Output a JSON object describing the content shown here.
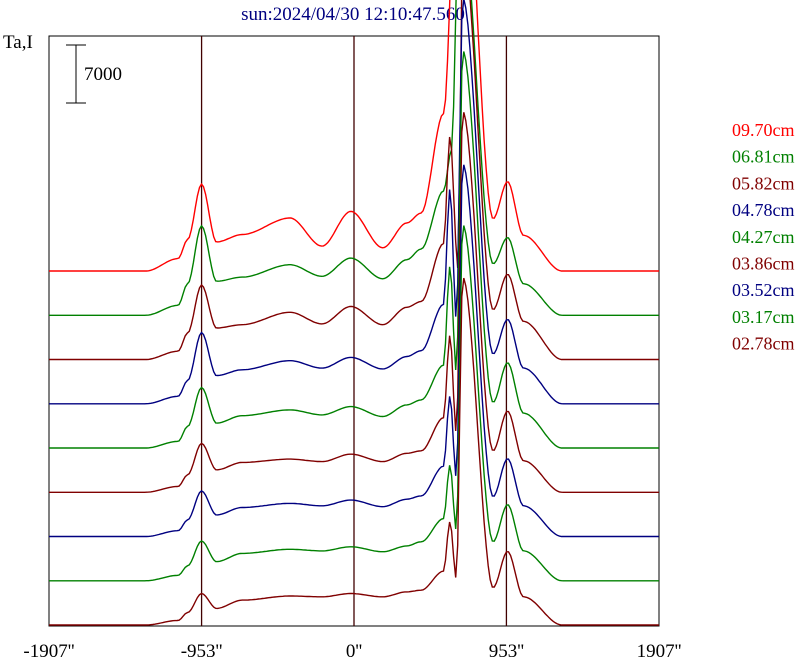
{
  "chart_data": {
    "type": "line",
    "title": "sun:2024/04/30 12:10:47.560",
    "ylabel": "Ta,I",
    "scale_bar_label": "7000",
    "xlim": [
      -1907,
      1907
    ],
    "x_ticks": [
      {
        "value": -1907,
        "label": "-1907''"
      },
      {
        "value": -953,
        "label": "-953''"
      },
      {
        "value": 0,
        "label": "0''"
      },
      {
        "value": 953,
        "label": "953''"
      },
      {
        "value": 1907,
        "label": "1907''"
      }
    ],
    "vertical_lines": [
      -953,
      0,
      953
    ],
    "grid": false,
    "legend_position": "right",
    "series": [
      {
        "name": "09.70cm",
        "color": "#ff0000",
        "peak": 29000,
        "features": [
          [
            -1300,
            60,
            -600
          ],
          [
            -1040,
            70,
            0
          ],
          [
            -953,
            40,
            4700
          ],
          [
            -860,
            40,
            -1200
          ],
          [
            -750,
            150,
            1600
          ],
          [
            -560,
            130,
            1300
          ],
          [
            -380,
            60,
            3000
          ],
          [
            -200,
            70,
            -1200
          ],
          [
            -20,
            60,
            4500
          ],
          [
            180,
            80,
            -1000
          ],
          [
            330,
            70,
            2500
          ],
          [
            420,
            60,
            1200
          ],
          [
            560,
            60,
            11500
          ],
          [
            660,
            110,
            30500
          ],
          [
            870,
            50,
            -2500
          ],
          [
            960,
            50,
            4900
          ],
          [
            1060,
            100,
            -1200
          ]
        ],
        "x": [
          -1907,
          -1300,
          -1100,
          -1040,
          -953,
          -860,
          -700,
          -400,
          -200,
          -20,
          180,
          330,
          420,
          560,
          660,
          870,
          960,
          1060,
          1300,
          1907
        ],
        "y": [
          0,
          0,
          1500,
          3800,
          10500,
          3500,
          4400,
          6400,
          3000,
          7200,
          2800,
          5800,
          7000,
          19000,
          60000,
          6300,
          10800,
          4300,
          0,
          0
        ]
      },
      {
        "name": "06.81cm",
        "color": "#008000",
        "x": [
          -1907,
          -1300,
          -1100,
          -1040,
          -953,
          -860,
          -700,
          -400,
          -200,
          -20,
          180,
          330,
          420,
          560,
          610,
          660,
          870,
          960,
          1060,
          1300,
          1907
        ],
        "y": [
          0,
          0,
          1200,
          3800,
          10800,
          4100,
          4600,
          6100,
          4700,
          6900,
          4400,
          6700,
          8000,
          15000,
          20000,
          51000,
          6200,
          9400,
          3800,
          0,
          0
        ]
      },
      {
        "name": "05.82cm",
        "color": "#800000",
        "x": [
          -1907,
          -1300,
          -1100,
          -1040,
          -953,
          -860,
          -700,
          -400,
          -200,
          -20,
          180,
          330,
          420,
          560,
          600,
          650,
          680,
          870,
          960,
          1060,
          1300,
          1907
        ],
        "y": [
          0,
          0,
          1000,
          3200,
          9000,
          3800,
          4200,
          5700,
          4300,
          6400,
          4200,
          6300,
          7000,
          14000,
          27000,
          11000,
          50000,
          6000,
          10300,
          4600,
          0,
          0
        ]
      },
      {
        "name": "04.78cm",
        "color": "#000080",
        "x": [
          -1907,
          -1300,
          -1100,
          -1040,
          -953,
          -860,
          -700,
          -400,
          -200,
          -20,
          180,
          330,
          420,
          560,
          600,
          640,
          680,
          870,
          960,
          1060,
          1300,
          1907
        ],
        "y": [
          0,
          0,
          900,
          2800,
          8600,
          3400,
          4100,
          5200,
          4300,
          5600,
          4200,
          5700,
          6400,
          12000,
          26000,
          10000,
          49000,
          6000,
          10200,
          4300,
          0,
          0
        ]
      },
      {
        "name": "04.27cm",
        "color": "#008000",
        "x": [
          -1907,
          -1300,
          -1100,
          -1040,
          -953,
          -860,
          -700,
          -400,
          -200,
          -20,
          180,
          330,
          420,
          560,
          600,
          640,
          680,
          870,
          960,
          1060,
          1300,
          1907
        ],
        "y": [
          0,
          0,
          800,
          2600,
          7300,
          3000,
          3900,
          4600,
          4000,
          5000,
          3800,
          5200,
          5800,
          10000,
          22000,
          9000,
          48000,
          5500,
          10300,
          4200,
          0,
          0
        ]
      },
      {
        "name": "03.86cm",
        "color": "#800000",
        "x": [
          -1907,
          -1300,
          -1100,
          -1040,
          -953,
          -860,
          -700,
          -400,
          -200,
          -20,
          180,
          330,
          420,
          560,
          600,
          640,
          680,
          870,
          960,
          1060,
          1300,
          1907
        ],
        "y": [
          0,
          0,
          700,
          2100,
          5900,
          2700,
          3600,
          4000,
          3700,
          4600,
          3700,
          4700,
          5000,
          9000,
          19000,
          7000,
          46000,
          5000,
          9800,
          3800,
          0,
          0
        ]
      },
      {
        "name": "03.52cm",
        "color": "#000080",
        "x": [
          -1907,
          -1300,
          -1100,
          -1040,
          -953,
          -860,
          -700,
          -400,
          -200,
          -20,
          180,
          330,
          420,
          560,
          600,
          640,
          680,
          870,
          960,
          1060,
          1300,
          1907
        ],
        "y": [
          0,
          0,
          700,
          2000,
          5500,
          2600,
          3500,
          4000,
          3700,
          4400,
          3600,
          4500,
          4900,
          8500,
          17000,
          7000,
          45000,
          4800,
          9400,
          3700,
          0,
          0
        ]
      },
      {
        "name": "03.17cm",
        "color": "#008000",
        "x": [
          -1907,
          -1300,
          -1100,
          -1040,
          -953,
          -860,
          -700,
          -400,
          -200,
          -20,
          180,
          330,
          420,
          560,
          600,
          640,
          680,
          870,
          960,
          1060,
          1300,
          1907
        ],
        "y": [
          0,
          0,
          650,
          1800,
          4800,
          2300,
          3300,
          3800,
          3600,
          4100,
          3500,
          4200,
          4700,
          7500,
          14000,
          6000,
          43000,
          4700,
          9200,
          3600,
          0,
          0
        ]
      },
      {
        "name": "02.78cm",
        "color": "#800000",
        "x": [
          -1907,
          -1300,
          -1100,
          -1040,
          -953,
          -860,
          -700,
          -400,
          -200,
          -20,
          180,
          330,
          420,
          560,
          600,
          640,
          680,
          870,
          960,
          1060,
          1300,
          1907
        ],
        "y": [
          0,
          0,
          550,
          1500,
          3800,
          2000,
          3000,
          3500,
          3400,
          3800,
          3400,
          4000,
          4200,
          6500,
          12500,
          5500,
          42000,
          4500,
          8900,
          3400,
          0,
          0
        ]
      }
    ]
  }
}
